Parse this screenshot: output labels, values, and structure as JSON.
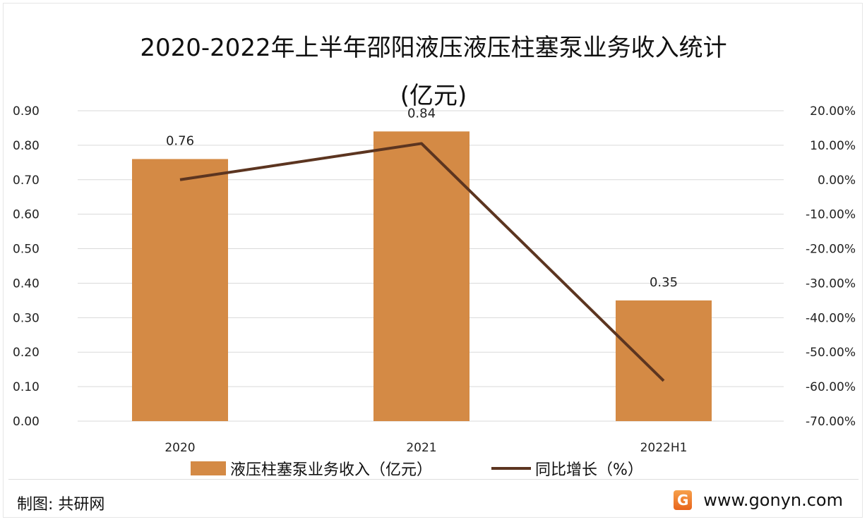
{
  "chart_data": {
    "type": "bar+line",
    "title_line1": "2020-2022年上半年邵阳液压液压柱塞泵业务收入统计",
    "title_line2": "(亿元)",
    "categories": [
      "2020",
      "2021",
      "2022H1"
    ],
    "series": [
      {
        "name": "液压柱塞泵业务收入（亿元）",
        "type": "bar",
        "axis": "left",
        "values": [
          0.76,
          0.84,
          0.35
        ],
        "labels": [
          "0.76",
          "0.84",
          "0.35"
        ],
        "color": "#D48A45"
      },
      {
        "name": "同比增长（%）",
        "type": "line",
        "axis": "right",
        "values": [
          0.0,
          10.5,
          -58.3
        ],
        "color": "#5C3520"
      }
    ],
    "y_left": {
      "range": [
        0,
        0.9
      ],
      "ticks": [
        "0.00",
        "0.10",
        "0.20",
        "0.30",
        "0.40",
        "0.50",
        "0.60",
        "0.70",
        "0.80",
        "0.90"
      ]
    },
    "y_right": {
      "range": [
        -70,
        20
      ],
      "ticks": [
        "-70.00%",
        "-60.00%",
        "-50.00%",
        "-40.00%",
        "-30.00%",
        "-20.00%",
        "-10.00%",
        "0.00%",
        "10.00%",
        "20.00%"
      ]
    },
    "grid": true,
    "legend_position": "bottom"
  },
  "footer": {
    "source": "制图: 共研网",
    "logo_letter": "G",
    "website": "www.gonyn.com"
  }
}
